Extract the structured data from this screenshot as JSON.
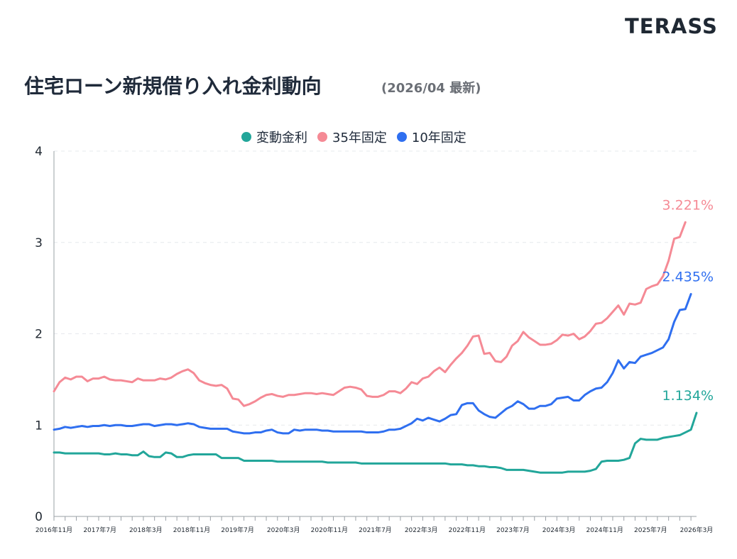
{
  "brand": {
    "logo_text": "TERASS"
  },
  "header": {
    "title": "住宅ローン新規借り入れ金利動向",
    "subtitle": "(2026/04 最新)"
  },
  "colors": {
    "variable": "#22a69a",
    "fixed35": "#f58a95",
    "fixed10": "#2f6ff0",
    "grid": "#e6e8ec",
    "axis": "#9aa0a6"
  },
  "chart_data": {
    "type": "line",
    "x_start": "2016年11月",
    "x_end": "2026年3月",
    "x_tick_labels": [
      "2016年11月",
      "2017年7月",
      "2018年3月",
      "2018年11月",
      "2019年7月",
      "2020年3月",
      "2020年11月",
      "2021年7月",
      "2022年3月",
      "2022年11月",
      "2023年7月",
      "2024年3月",
      "2024年11月",
      "2025年7月",
      "2026年3月"
    ],
    "y_ticks": [
      "0",
      "1",
      "2",
      "3",
      "4"
    ],
    "ylim": [
      0,
      4
    ],
    "legend_position": "top-center",
    "grid": "horizontal-dashed",
    "series": [
      {
        "name": "変動金利",
        "color": "#22a69a",
        "end_label": "1.134%",
        "values": [
          0.7,
          0.7,
          0.69,
          0.69,
          0.69,
          0.69,
          0.69,
          0.69,
          0.69,
          0.68,
          0.68,
          0.69,
          0.68,
          0.68,
          0.67,
          0.67,
          0.71,
          0.66,
          0.65,
          0.65,
          0.7,
          0.69,
          0.65,
          0.65,
          0.67,
          0.68,
          0.68,
          0.68,
          0.68,
          0.68,
          0.64,
          0.64,
          0.64,
          0.64,
          0.61,
          0.61,
          0.61,
          0.61,
          0.61,
          0.61,
          0.6,
          0.6,
          0.6,
          0.6,
          0.6,
          0.6,
          0.6,
          0.6,
          0.6,
          0.59,
          0.59,
          0.59,
          0.59,
          0.59,
          0.59,
          0.58,
          0.58,
          0.58,
          0.58,
          0.58,
          0.58,
          0.58,
          0.58,
          0.58,
          0.58,
          0.58,
          0.58,
          0.58,
          0.58,
          0.58,
          0.58,
          0.57,
          0.57,
          0.57,
          0.56,
          0.56,
          0.55,
          0.55,
          0.54,
          0.54,
          0.53,
          0.51,
          0.51,
          0.51,
          0.51,
          0.5,
          0.49,
          0.48,
          0.48,
          0.48,
          0.48,
          0.48,
          0.49,
          0.49,
          0.49,
          0.49,
          0.5,
          0.52,
          0.6,
          0.61,
          0.61,
          0.61,
          0.62,
          0.64,
          0.8,
          0.85,
          0.84,
          0.84,
          0.84,
          0.86,
          0.87,
          0.88,
          0.89,
          0.92,
          0.95,
          1.134
        ]
      },
      {
        "name": "35年固定",
        "color": "#f58a95",
        "end_label": "3.221%",
        "values": [
          1.37,
          1.47,
          1.52,
          1.5,
          1.53,
          1.53,
          1.48,
          1.51,
          1.51,
          1.53,
          1.5,
          1.49,
          1.49,
          1.48,
          1.47,
          1.51,
          1.49,
          1.49,
          1.49,
          1.51,
          1.5,
          1.52,
          1.56,
          1.59,
          1.61,
          1.57,
          1.49,
          1.46,
          1.44,
          1.43,
          1.44,
          1.4,
          1.29,
          1.28,
          1.21,
          1.23,
          1.26,
          1.3,
          1.33,
          1.34,
          1.32,
          1.31,
          1.33,
          1.33,
          1.34,
          1.35,
          1.35,
          1.34,
          1.35,
          1.34,
          1.33,
          1.37,
          1.41,
          1.42,
          1.41,
          1.39,
          1.32,
          1.31,
          1.31,
          1.33,
          1.37,
          1.37,
          1.35,
          1.4,
          1.47,
          1.45,
          1.51,
          1.53,
          1.59,
          1.63,
          1.58,
          1.66,
          1.73,
          1.79,
          1.87,
          1.97,
          1.98,
          1.78,
          1.79,
          1.7,
          1.69,
          1.75,
          1.87,
          1.92,
          2.02,
          1.96,
          1.92,
          1.88,
          1.88,
          1.89,
          1.93,
          1.99,
          1.98,
          2.0,
          1.94,
          1.97,
          2.03,
          2.11,
          2.12,
          2.17,
          2.24,
          2.31,
          2.21,
          2.33,
          2.32,
          2.34,
          2.49,
          2.52,
          2.54,
          2.63,
          2.8,
          3.04,
          3.06,
          3.221
        ]
      },
      {
        "name": "10年固定",
        "color": "#2f6ff0",
        "end_label": "2.435%",
        "values": [
          0.95,
          0.96,
          0.98,
          0.97,
          0.98,
          0.99,
          0.98,
          0.99,
          0.99,
          1.0,
          0.99,
          1.0,
          1.0,
          0.99,
          0.99,
          1.0,
          1.01,
          1.01,
          0.99,
          1.0,
          1.01,
          1.01,
          1.0,
          1.01,
          1.02,
          1.01,
          0.98,
          0.97,
          0.96,
          0.96,
          0.96,
          0.96,
          0.93,
          0.92,
          0.91,
          0.91,
          0.92,
          0.92,
          0.94,
          0.95,
          0.92,
          0.91,
          0.91,
          0.95,
          0.94,
          0.95,
          0.95,
          0.95,
          0.94,
          0.94,
          0.93,
          0.93,
          0.93,
          0.93,
          0.93,
          0.93,
          0.92,
          0.92,
          0.92,
          0.93,
          0.95,
          0.95,
          0.96,
          0.99,
          1.02,
          1.07,
          1.05,
          1.08,
          1.06,
          1.04,
          1.07,
          1.11,
          1.12,
          1.22,
          1.24,
          1.24,
          1.16,
          1.12,
          1.09,
          1.08,
          1.13,
          1.18,
          1.21,
          1.26,
          1.23,
          1.18,
          1.18,
          1.21,
          1.21,
          1.23,
          1.29,
          1.3,
          1.31,
          1.27,
          1.27,
          1.33,
          1.37,
          1.4,
          1.41,
          1.47,
          1.57,
          1.71,
          1.62,
          1.69,
          1.68,
          1.75,
          1.77,
          1.79,
          1.82,
          1.85,
          1.94,
          2.13,
          2.26,
          2.27,
          2.435
        ]
      }
    ]
  }
}
